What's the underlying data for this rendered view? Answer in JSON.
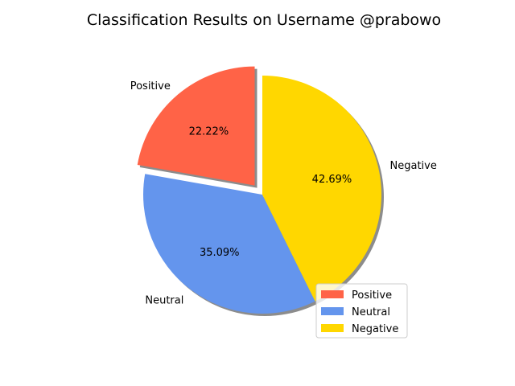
{
  "chart_data": {
    "type": "pie",
    "title": "Classification Results on Username @prabowo",
    "slices": [
      {
        "label": "Positive",
        "value": 22.22,
        "pct_label": "22.22%",
        "color": "#FF6347",
        "explode": true
      },
      {
        "label": "Neutral",
        "value": 35.09,
        "pct_label": "35.09%",
        "color": "#6495ED",
        "explode": false
      },
      {
        "label": "Negative",
        "value": 42.69,
        "pct_label": "42.69%",
        "color": "#FFD700",
        "explode": false
      }
    ],
    "start_angle_deg": 90,
    "direction": "counterclockwise",
    "shadow": true,
    "legend": {
      "location": "lower-right",
      "entries": [
        "Positive",
        "Neutral",
        "Negative"
      ]
    }
  }
}
